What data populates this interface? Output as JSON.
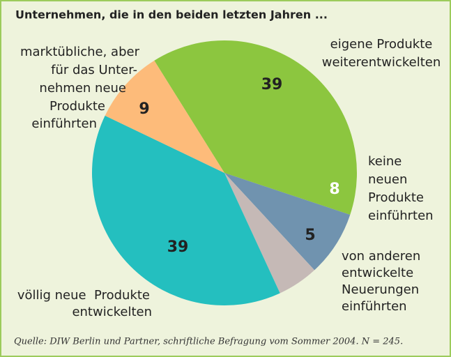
{
  "chart_data": {
    "type": "pie",
    "title": "Unternehmen, die in den beiden letzten Jahren ...",
    "categories": [
      [
        "eigene Produkte",
        "weiterentwickelten"
      ],
      [
        "keine",
        "neuen",
        "Produkte",
        "einführten"
      ],
      [
        "von anderen",
        "entwickelte",
        "Neuerungen",
        "einführten"
      ],
      [
        "völlig neue  Produkte",
        "entwickelten"
      ],
      [
        "marktübliche, aber",
        "für das Unter-",
        "nehmen neue",
        "Produkte",
        "einführten"
      ]
    ],
    "values": [
      39,
      8,
      5,
      39,
      9
    ],
    "colors": [
      "#8cc63f",
      "#7093af",
      "#c5b9b6",
      "#24bfbf",
      "#fdbb7a"
    ],
    "value_label_colors": [
      "#222222",
      "#ffffff",
      "#222222",
      "#222222",
      "#222222"
    ],
    "source": "Quelle: DIW Berlin und Partner, schriftliche Befragung vom Sommer 2004. N = 245."
  }
}
